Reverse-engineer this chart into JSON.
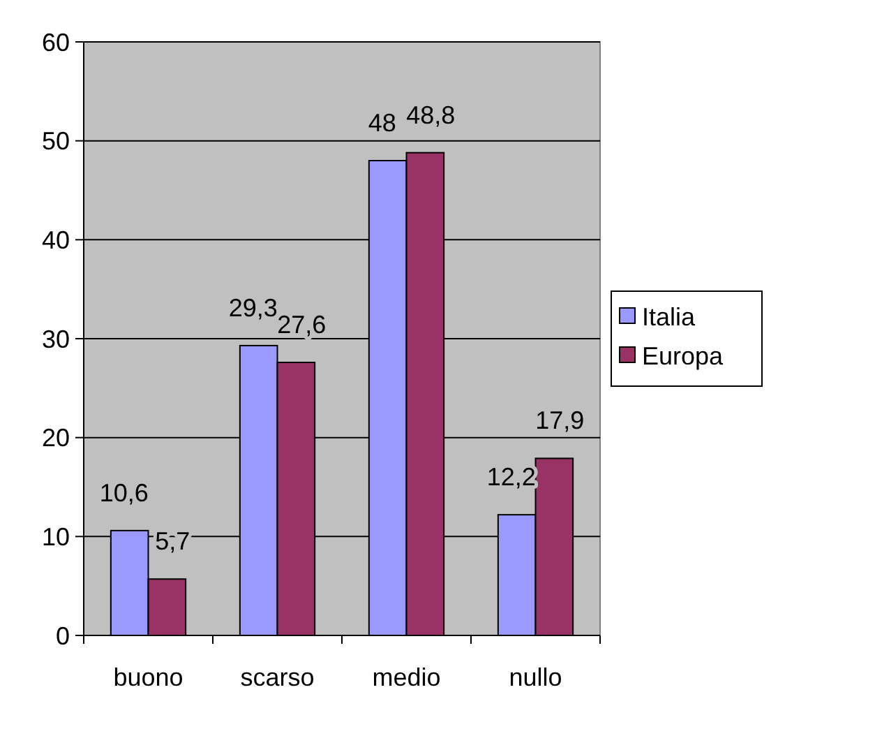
{
  "chart_data": {
    "type": "bar",
    "categories": [
      "buono",
      "scarso",
      "medio",
      "nullo"
    ],
    "series": [
      {
        "name": "Italia",
        "color": "#9999ff",
        "values": [
          10.6,
          29.3,
          48,
          12.2
        ],
        "value_labels": [
          "10,6",
          "29,3",
          "48",
          "12,2"
        ]
      },
      {
        "name": "Europa",
        "color": "#993366",
        "values": [
          5.7,
          27.6,
          48.8,
          17.9
        ],
        "value_labels": [
          "5,7",
          "27,6",
          "48,8",
          "17,9"
        ]
      }
    ],
    "ylim": [
      0,
      60
    ],
    "yticks": [
      0,
      10,
      20,
      30,
      40,
      50,
      60
    ],
    "grid": "y",
    "legend": "right"
  }
}
